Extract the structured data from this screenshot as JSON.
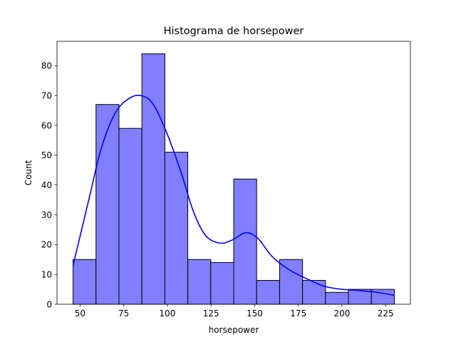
{
  "chart_data": {
    "type": "bar",
    "title": "Histograma de horsepower",
    "xlabel": "horsepower",
    "ylabel": "Count",
    "bin_edges": [
      46.0,
      59.14,
      72.29,
      85.43,
      98.57,
      111.71,
      124.86,
      138.0,
      151.14,
      164.29,
      177.43,
      190.57,
      203.71,
      216.86,
      230.0
    ],
    "values": [
      15,
      67,
      59,
      84,
      51,
      15,
      14,
      42,
      8,
      15,
      8,
      4,
      5,
      5
    ],
    "xlim": [
      36.8,
      239.2
    ],
    "ylim": [
      0,
      88.2
    ],
    "xticks": [
      50,
      75,
      100,
      125,
      150,
      175,
      200,
      225
    ],
    "yticks": [
      0,
      10,
      20,
      30,
      40,
      50,
      60,
      70,
      80
    ],
    "bar_color": "#8080ff",
    "bar_edge_color": "#000000",
    "kde": {
      "color": "#0000ff",
      "x": [
        46,
        55,
        62,
        70,
        78,
        85,
        92,
        100,
        108,
        115,
        122,
        130,
        137,
        145,
        152,
        160,
        170,
        180,
        190,
        200,
        210,
        220,
        230
      ],
      "y": [
        13,
        35,
        52,
        64,
        69,
        70,
        67,
        57,
        44,
        31,
        23,
        20.5,
        21.5,
        24,
        22,
        16,
        11.5,
        8.5,
        6,
        5,
        4.6,
        4,
        3
      ]
    },
    "grid": false,
    "legend": "none"
  }
}
